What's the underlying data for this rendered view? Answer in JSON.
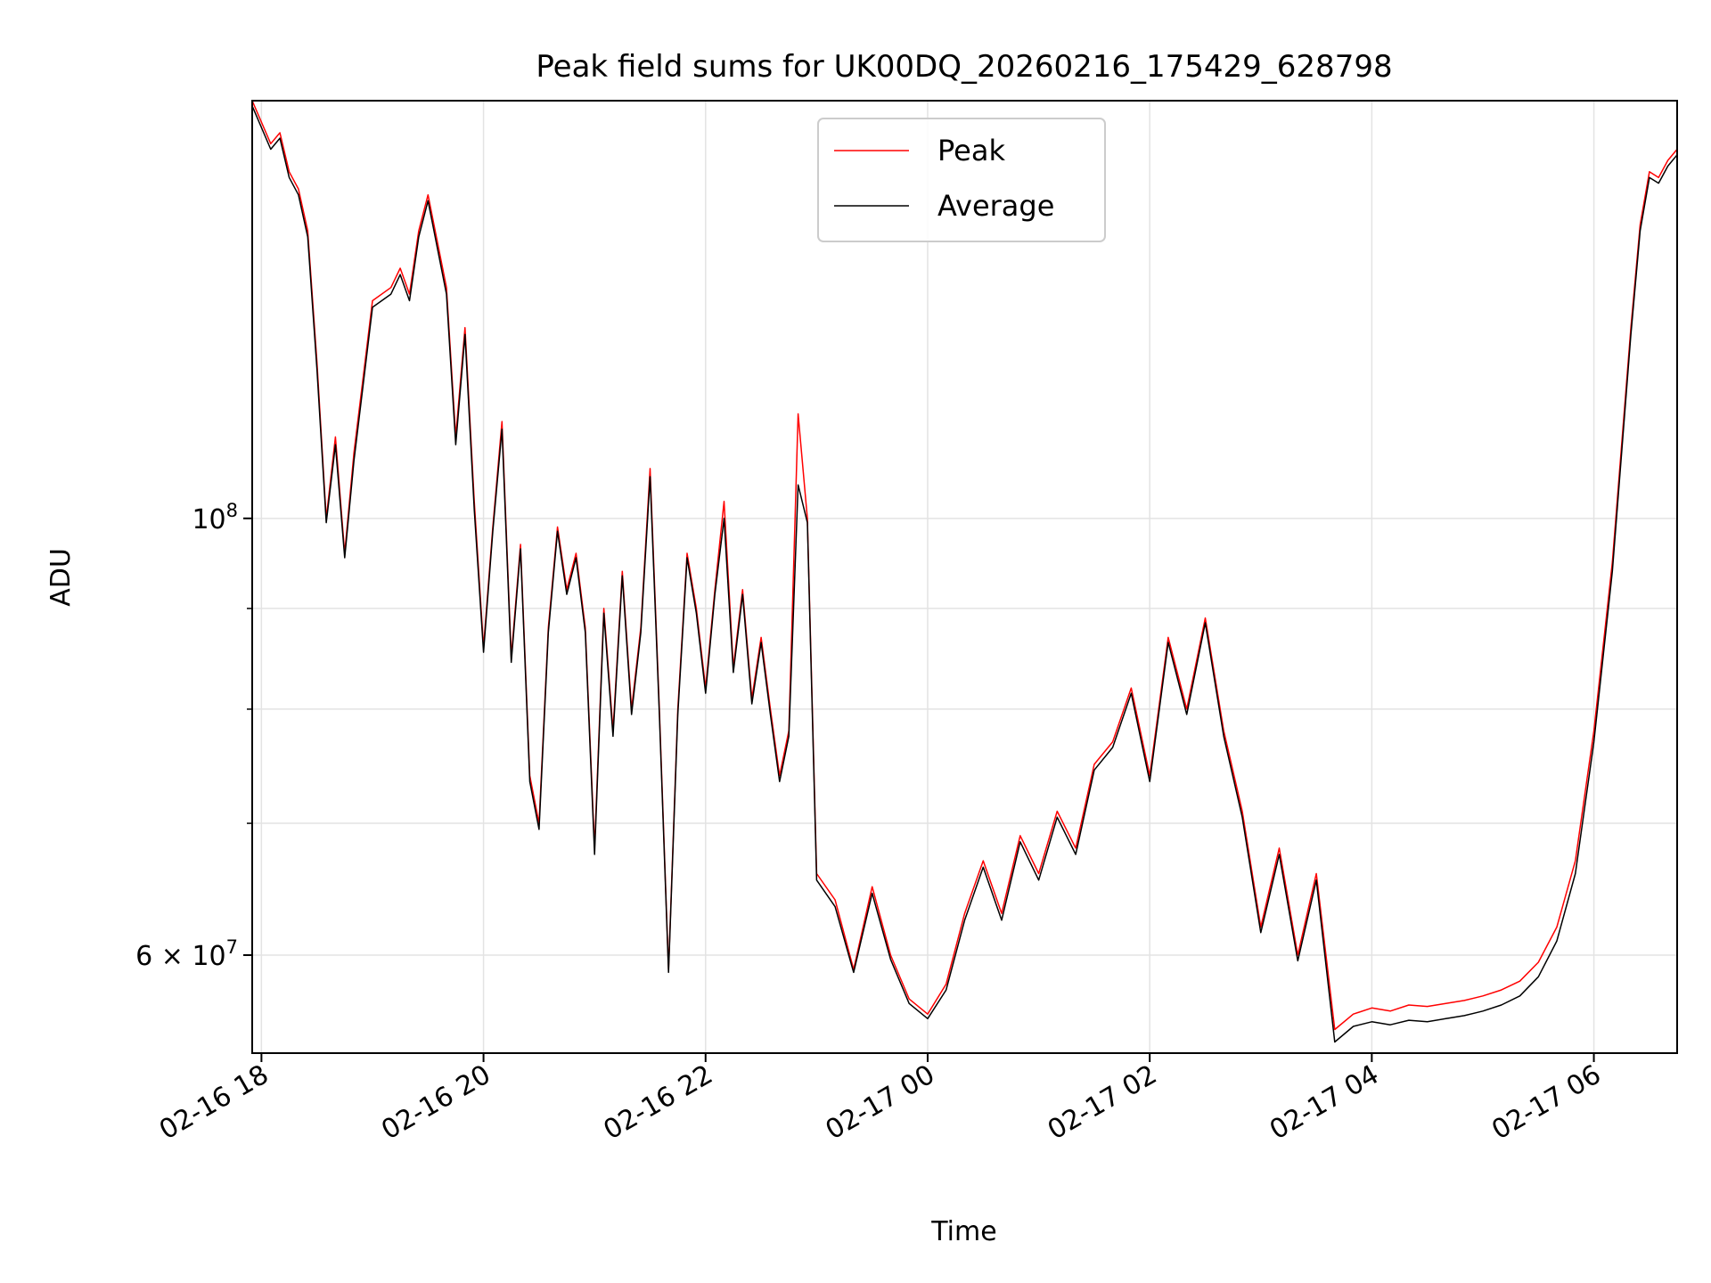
{
  "chart_data": {
    "type": "line",
    "title": "Peak field sums for UK00DQ_20260216_175429_628798",
    "xlabel": "Time",
    "ylabel": "ADU",
    "y_scale": "log",
    "ylim": [
      53500000,
      163000000
    ],
    "xlim": [
      "2026-02-16 17:55",
      "2026-02-17 06:45"
    ],
    "grid": true,
    "legend_position": "upper center",
    "x_ticks": [
      {
        "t": "2026-02-16 18:00",
        "label": "02-16 18"
      },
      {
        "t": "2026-02-16 20:00",
        "label": "02-16 20"
      },
      {
        "t": "2026-02-16 22:00",
        "label": "02-16 22"
      },
      {
        "t": "2026-02-17 00:00",
        "label": "02-17 00"
      },
      {
        "t": "2026-02-17 02:00",
        "label": "02-17 02"
      },
      {
        "t": "2026-02-17 04:00",
        "label": "02-17 04"
      },
      {
        "t": "2026-02-17 06:00",
        "label": "02-17 06"
      }
    ],
    "y_major_ticks": [
      {
        "value": 100000000,
        "base": "10",
        "exp": "8",
        "mant": ""
      },
      {
        "value": 60000000,
        "base": "10",
        "exp": "7",
        "mant": "6"
      }
    ],
    "y_minor_ticks": [
      70000000,
      80000000,
      90000000
    ],
    "series": [
      {
        "name": "Peak",
        "color": "#ff0000",
        "points": [
          [
            "2026-02-16 17:55",
            163000000
          ],
          [
            "2026-02-16 18:05",
            155000000
          ],
          [
            "2026-02-16 18:10",
            157000000
          ],
          [
            "2026-02-16 18:15",
            150000000
          ],
          [
            "2026-02-16 18:20",
            147000000
          ],
          [
            "2026-02-16 18:25",
            140000000
          ],
          [
            "2026-02-16 18:30",
            120000000
          ],
          [
            "2026-02-16 18:35",
            100000000
          ],
          [
            "2026-02-16 18:40",
            110000000
          ],
          [
            "2026-02-16 18:45",
            96000000
          ],
          [
            "2026-02-16 18:50",
            108000000
          ],
          [
            "2026-02-16 18:55",
            118000000
          ],
          [
            "2026-02-16 19:00",
            129000000
          ],
          [
            "2026-02-16 19:10",
            131000000
          ],
          [
            "2026-02-16 19:15",
            134000000
          ],
          [
            "2026-02-16 19:20",
            130000000
          ],
          [
            "2026-02-16 19:25",
            140000000
          ],
          [
            "2026-02-16 19:30",
            146000000
          ],
          [
            "2026-02-16 19:40",
            131000000
          ],
          [
            "2026-02-16 19:45",
            110000000
          ],
          [
            "2026-02-16 19:50",
            125000000
          ],
          [
            "2026-02-16 19:55",
            102000000
          ],
          [
            "2026-02-16 20:00",
            86000000
          ],
          [
            "2026-02-16 20:05",
            99000000
          ],
          [
            "2026-02-16 20:10",
            112000000
          ],
          [
            "2026-02-16 20:15",
            85000000
          ],
          [
            "2026-02-16 20:20",
            97000000
          ],
          [
            "2026-02-16 20:25",
            74000000
          ],
          [
            "2026-02-16 20:30",
            70000000
          ],
          [
            "2026-02-16 20:35",
            88000000
          ],
          [
            "2026-02-16 20:40",
            99000000
          ],
          [
            "2026-02-16 20:45",
            92000000
          ],
          [
            "2026-02-16 20:50",
            96000000
          ],
          [
            "2026-02-16 20:55",
            88000000
          ],
          [
            "2026-02-16 21:00",
            68000000
          ],
          [
            "2026-02-16 21:05",
            90000000
          ],
          [
            "2026-02-16 21:10",
            78000000
          ],
          [
            "2026-02-16 21:15",
            94000000
          ],
          [
            "2026-02-16 21:20",
            80000000
          ],
          [
            "2026-02-16 21:25",
            88000000
          ],
          [
            "2026-02-16 21:30",
            106000000
          ],
          [
            "2026-02-16 21:35",
            80000000
          ],
          [
            "2026-02-16 21:40",
            59000000
          ],
          [
            "2026-02-16 21:45",
            80000000
          ],
          [
            "2026-02-16 21:50",
            96000000
          ],
          [
            "2026-02-16 21:55",
            90000000
          ],
          [
            "2026-02-16 22:00",
            82000000
          ],
          [
            "2026-02-16 22:05",
            92000000
          ],
          [
            "2026-02-16 22:10",
            102000000
          ],
          [
            "2026-02-16 22:15",
            84000000
          ],
          [
            "2026-02-16 22:20",
            92000000
          ],
          [
            "2026-02-16 22:25",
            81000000
          ],
          [
            "2026-02-16 22:30",
            87000000
          ],
          [
            "2026-02-16 22:35",
            80000000
          ],
          [
            "2026-02-16 22:40",
            74000000
          ],
          [
            "2026-02-16 22:45",
            78000000
          ],
          [
            "2026-02-16 22:50",
            113000000
          ],
          [
            "2026-02-16 22:55",
            100000000
          ],
          [
            "2026-02-16 23:00",
            66000000
          ],
          [
            "2026-02-16 23:10",
            64000000
          ],
          [
            "2026-02-16 23:20",
            59000000
          ],
          [
            "2026-02-16 23:30",
            65000000
          ],
          [
            "2026-02-16 23:40",
            60000000
          ],
          [
            "2026-02-16 23:50",
            57000000
          ],
          [
            "2026-02-17 00:00",
            56000000
          ],
          [
            "2026-02-17 00:10",
            58000000
          ],
          [
            "2026-02-17 00:20",
            63000000
          ],
          [
            "2026-02-17 00:30",
            67000000
          ],
          [
            "2026-02-17 00:40",
            63000000
          ],
          [
            "2026-02-17 00:50",
            69000000
          ],
          [
            "2026-02-17 01:00",
            66000000
          ],
          [
            "2026-02-17 01:10",
            71000000
          ],
          [
            "2026-02-17 01:20",
            68000000
          ],
          [
            "2026-02-17 01:30",
            75000000
          ],
          [
            "2026-02-17 01:40",
            77000000
          ],
          [
            "2026-02-17 01:50",
            82000000
          ],
          [
            "2026-02-17 02:00",
            74000000
          ],
          [
            "2026-02-17 02:10",
            87000000
          ],
          [
            "2026-02-17 02:20",
            80000000
          ],
          [
            "2026-02-17 02:30",
            89000000
          ],
          [
            "2026-02-17 02:40",
            78000000
          ],
          [
            "2026-02-17 02:50",
            71000000
          ],
          [
            "2026-02-17 03:00",
            62000000
          ],
          [
            "2026-02-17 03:10",
            68000000
          ],
          [
            "2026-02-17 03:20",
            60000000
          ],
          [
            "2026-02-17 03:30",
            66000000
          ],
          [
            "2026-02-17 03:40",
            55000000
          ],
          [
            "2026-02-17 03:50",
            56000000
          ],
          [
            "2026-02-17 04:00",
            56400000
          ],
          [
            "2026-02-17 04:10",
            56200000
          ],
          [
            "2026-02-17 04:20",
            56600000
          ],
          [
            "2026-02-17 04:30",
            56500000
          ],
          [
            "2026-02-17 04:40",
            56700000
          ],
          [
            "2026-02-17 04:50",
            56900000
          ],
          [
            "2026-02-17 05:00",
            57200000
          ],
          [
            "2026-02-17 05:10",
            57600000
          ],
          [
            "2026-02-17 05:20",
            58200000
          ],
          [
            "2026-02-17 05:30",
            59500000
          ],
          [
            "2026-02-17 05:40",
            62000000
          ],
          [
            "2026-02-17 05:50",
            67000000
          ],
          [
            "2026-02-17 06:00",
            78000000
          ],
          [
            "2026-02-17 06:10",
            95000000
          ],
          [
            "2026-02-17 06:20",
            125000000
          ],
          [
            "2026-02-17 06:25",
            141000000
          ],
          [
            "2026-02-17 06:30",
            150000000
          ],
          [
            "2026-02-17 06:35",
            149000000
          ],
          [
            "2026-02-17 06:40",
            152000000
          ],
          [
            "2026-02-17 06:45",
            154000000
          ]
        ]
      },
      {
        "name": "Average",
        "color": "#000000",
        "points": [
          [
            "2026-02-16 17:55",
            162000000
          ],
          [
            "2026-02-16 18:05",
            154000000
          ],
          [
            "2026-02-16 18:10",
            156000000
          ],
          [
            "2026-02-16 18:15",
            149000000
          ],
          [
            "2026-02-16 18:20",
            146000000
          ],
          [
            "2026-02-16 18:25",
            139000000
          ],
          [
            "2026-02-16 18:30",
            119000000
          ],
          [
            "2026-02-16 18:35",
            99500000
          ],
          [
            "2026-02-16 18:40",
            109000000
          ],
          [
            "2026-02-16 18:45",
            95500000
          ],
          [
            "2026-02-16 18:50",
            107000000
          ],
          [
            "2026-02-16 18:55",
            117000000
          ],
          [
            "2026-02-16 19:00",
            128000000
          ],
          [
            "2026-02-16 19:10",
            130000000
          ],
          [
            "2026-02-16 19:15",
            133000000
          ],
          [
            "2026-02-16 19:20",
            129000000
          ],
          [
            "2026-02-16 19:25",
            139000000
          ],
          [
            "2026-02-16 19:30",
            145000000
          ],
          [
            "2026-02-16 19:40",
            130000000
          ],
          [
            "2026-02-16 19:45",
            109000000
          ],
          [
            "2026-02-16 19:50",
            124000000
          ],
          [
            "2026-02-16 19:55",
            101000000
          ],
          [
            "2026-02-16 20:00",
            85500000
          ],
          [
            "2026-02-16 20:05",
            98500000
          ],
          [
            "2026-02-16 20:10",
            111000000
          ],
          [
            "2026-02-16 20:15",
            84500000
          ],
          [
            "2026-02-16 20:20",
            96500000
          ],
          [
            "2026-02-16 20:25",
            73500000
          ],
          [
            "2026-02-16 20:30",
            69500000
          ],
          [
            "2026-02-16 20:35",
            87500000
          ],
          [
            "2026-02-16 20:40",
            98500000
          ],
          [
            "2026-02-16 20:45",
            91500000
          ],
          [
            "2026-02-16 20:50",
            95500000
          ],
          [
            "2026-02-16 20:55",
            87500000
          ],
          [
            "2026-02-16 21:00",
            67500000
          ],
          [
            "2026-02-16 21:05",
            89500000
          ],
          [
            "2026-02-16 21:10",
            77500000
          ],
          [
            "2026-02-16 21:15",
            93500000
          ],
          [
            "2026-02-16 21:20",
            79500000
          ],
          [
            "2026-02-16 21:25",
            87500000
          ],
          [
            "2026-02-16 21:30",
            105000000
          ],
          [
            "2026-02-16 21:35",
            79500000
          ],
          [
            "2026-02-16 21:40",
            58800000
          ],
          [
            "2026-02-16 21:45",
            79500000
          ],
          [
            "2026-02-16 21:50",
            95500000
          ],
          [
            "2026-02-16 21:55",
            89500000
          ],
          [
            "2026-02-16 22:00",
            81500000
          ],
          [
            "2026-02-16 22:05",
            91500000
          ],
          [
            "2026-02-16 22:10",
            100000000
          ],
          [
            "2026-02-16 22:15",
            83500000
          ],
          [
            "2026-02-16 22:20",
            91500000
          ],
          [
            "2026-02-16 22:25",
            80500000
          ],
          [
            "2026-02-16 22:30",
            86500000
          ],
          [
            "2026-02-16 22:35",
            79500000
          ],
          [
            "2026-02-16 22:40",
            73500000
          ],
          [
            "2026-02-16 22:45",
            77500000
          ],
          [
            "2026-02-16 22:50",
            104000000
          ],
          [
            "2026-02-16 22:55",
            99500000
          ],
          [
            "2026-02-16 23:00",
            65500000
          ],
          [
            "2026-02-16 23:10",
            63500000
          ],
          [
            "2026-02-16 23:20",
            58800000
          ],
          [
            "2026-02-16 23:30",
            64500000
          ],
          [
            "2026-02-16 23:40",
            59700000
          ],
          [
            "2026-02-16 23:50",
            56700000
          ],
          [
            "2026-02-17 00:00",
            55700000
          ],
          [
            "2026-02-17 00:10",
            57600000
          ],
          [
            "2026-02-17 00:20",
            62500000
          ],
          [
            "2026-02-17 00:30",
            66500000
          ],
          [
            "2026-02-17 00:40",
            62500000
          ],
          [
            "2026-02-17 00:50",
            68500000
          ],
          [
            "2026-02-17 01:00",
            65500000
          ],
          [
            "2026-02-17 01:10",
            70500000
          ],
          [
            "2026-02-17 01:20",
            67500000
          ],
          [
            "2026-02-17 01:30",
            74500000
          ],
          [
            "2026-02-17 01:40",
            76500000
          ],
          [
            "2026-02-17 01:50",
            81500000
          ],
          [
            "2026-02-17 02:00",
            73500000
          ],
          [
            "2026-02-17 02:10",
            86500000
          ],
          [
            "2026-02-17 02:20",
            79500000
          ],
          [
            "2026-02-17 02:30",
            88500000
          ],
          [
            "2026-02-17 02:40",
            77500000
          ],
          [
            "2026-02-17 02:50",
            70500000
          ],
          [
            "2026-02-17 03:00",
            61600000
          ],
          [
            "2026-02-17 03:10",
            67500000
          ],
          [
            "2026-02-17 03:20",
            59600000
          ],
          [
            "2026-02-17 03:30",
            65500000
          ],
          [
            "2026-02-17 03:40",
            54200000
          ],
          [
            "2026-02-17 03:50",
            55200000
          ],
          [
            "2026-02-17 04:00",
            55500000
          ],
          [
            "2026-02-17 04:10",
            55300000
          ],
          [
            "2026-02-17 04:20",
            55600000
          ],
          [
            "2026-02-17 04:30",
            55500000
          ],
          [
            "2026-02-17 04:40",
            55700000
          ],
          [
            "2026-02-17 04:50",
            55900000
          ],
          [
            "2026-02-17 05:00",
            56200000
          ],
          [
            "2026-02-17 05:10",
            56600000
          ],
          [
            "2026-02-17 05:20",
            57200000
          ],
          [
            "2026-02-17 05:30",
            58500000
          ],
          [
            "2026-02-17 05:40",
            61000000
          ],
          [
            "2026-02-17 05:50",
            66000000
          ],
          [
            "2026-02-17 06:00",
            77000000
          ],
          [
            "2026-02-17 06:10",
            94000000
          ],
          [
            "2026-02-17 06:20",
            124000000
          ],
          [
            "2026-02-17 06:25",
            140000000
          ],
          [
            "2026-02-17 06:30",
            149000000
          ],
          [
            "2026-02-17 06:35",
            148000000
          ],
          [
            "2026-02-17 06:40",
            151000000
          ],
          [
            "2026-02-17 06:45",
            153000000
          ]
        ]
      }
    ]
  }
}
